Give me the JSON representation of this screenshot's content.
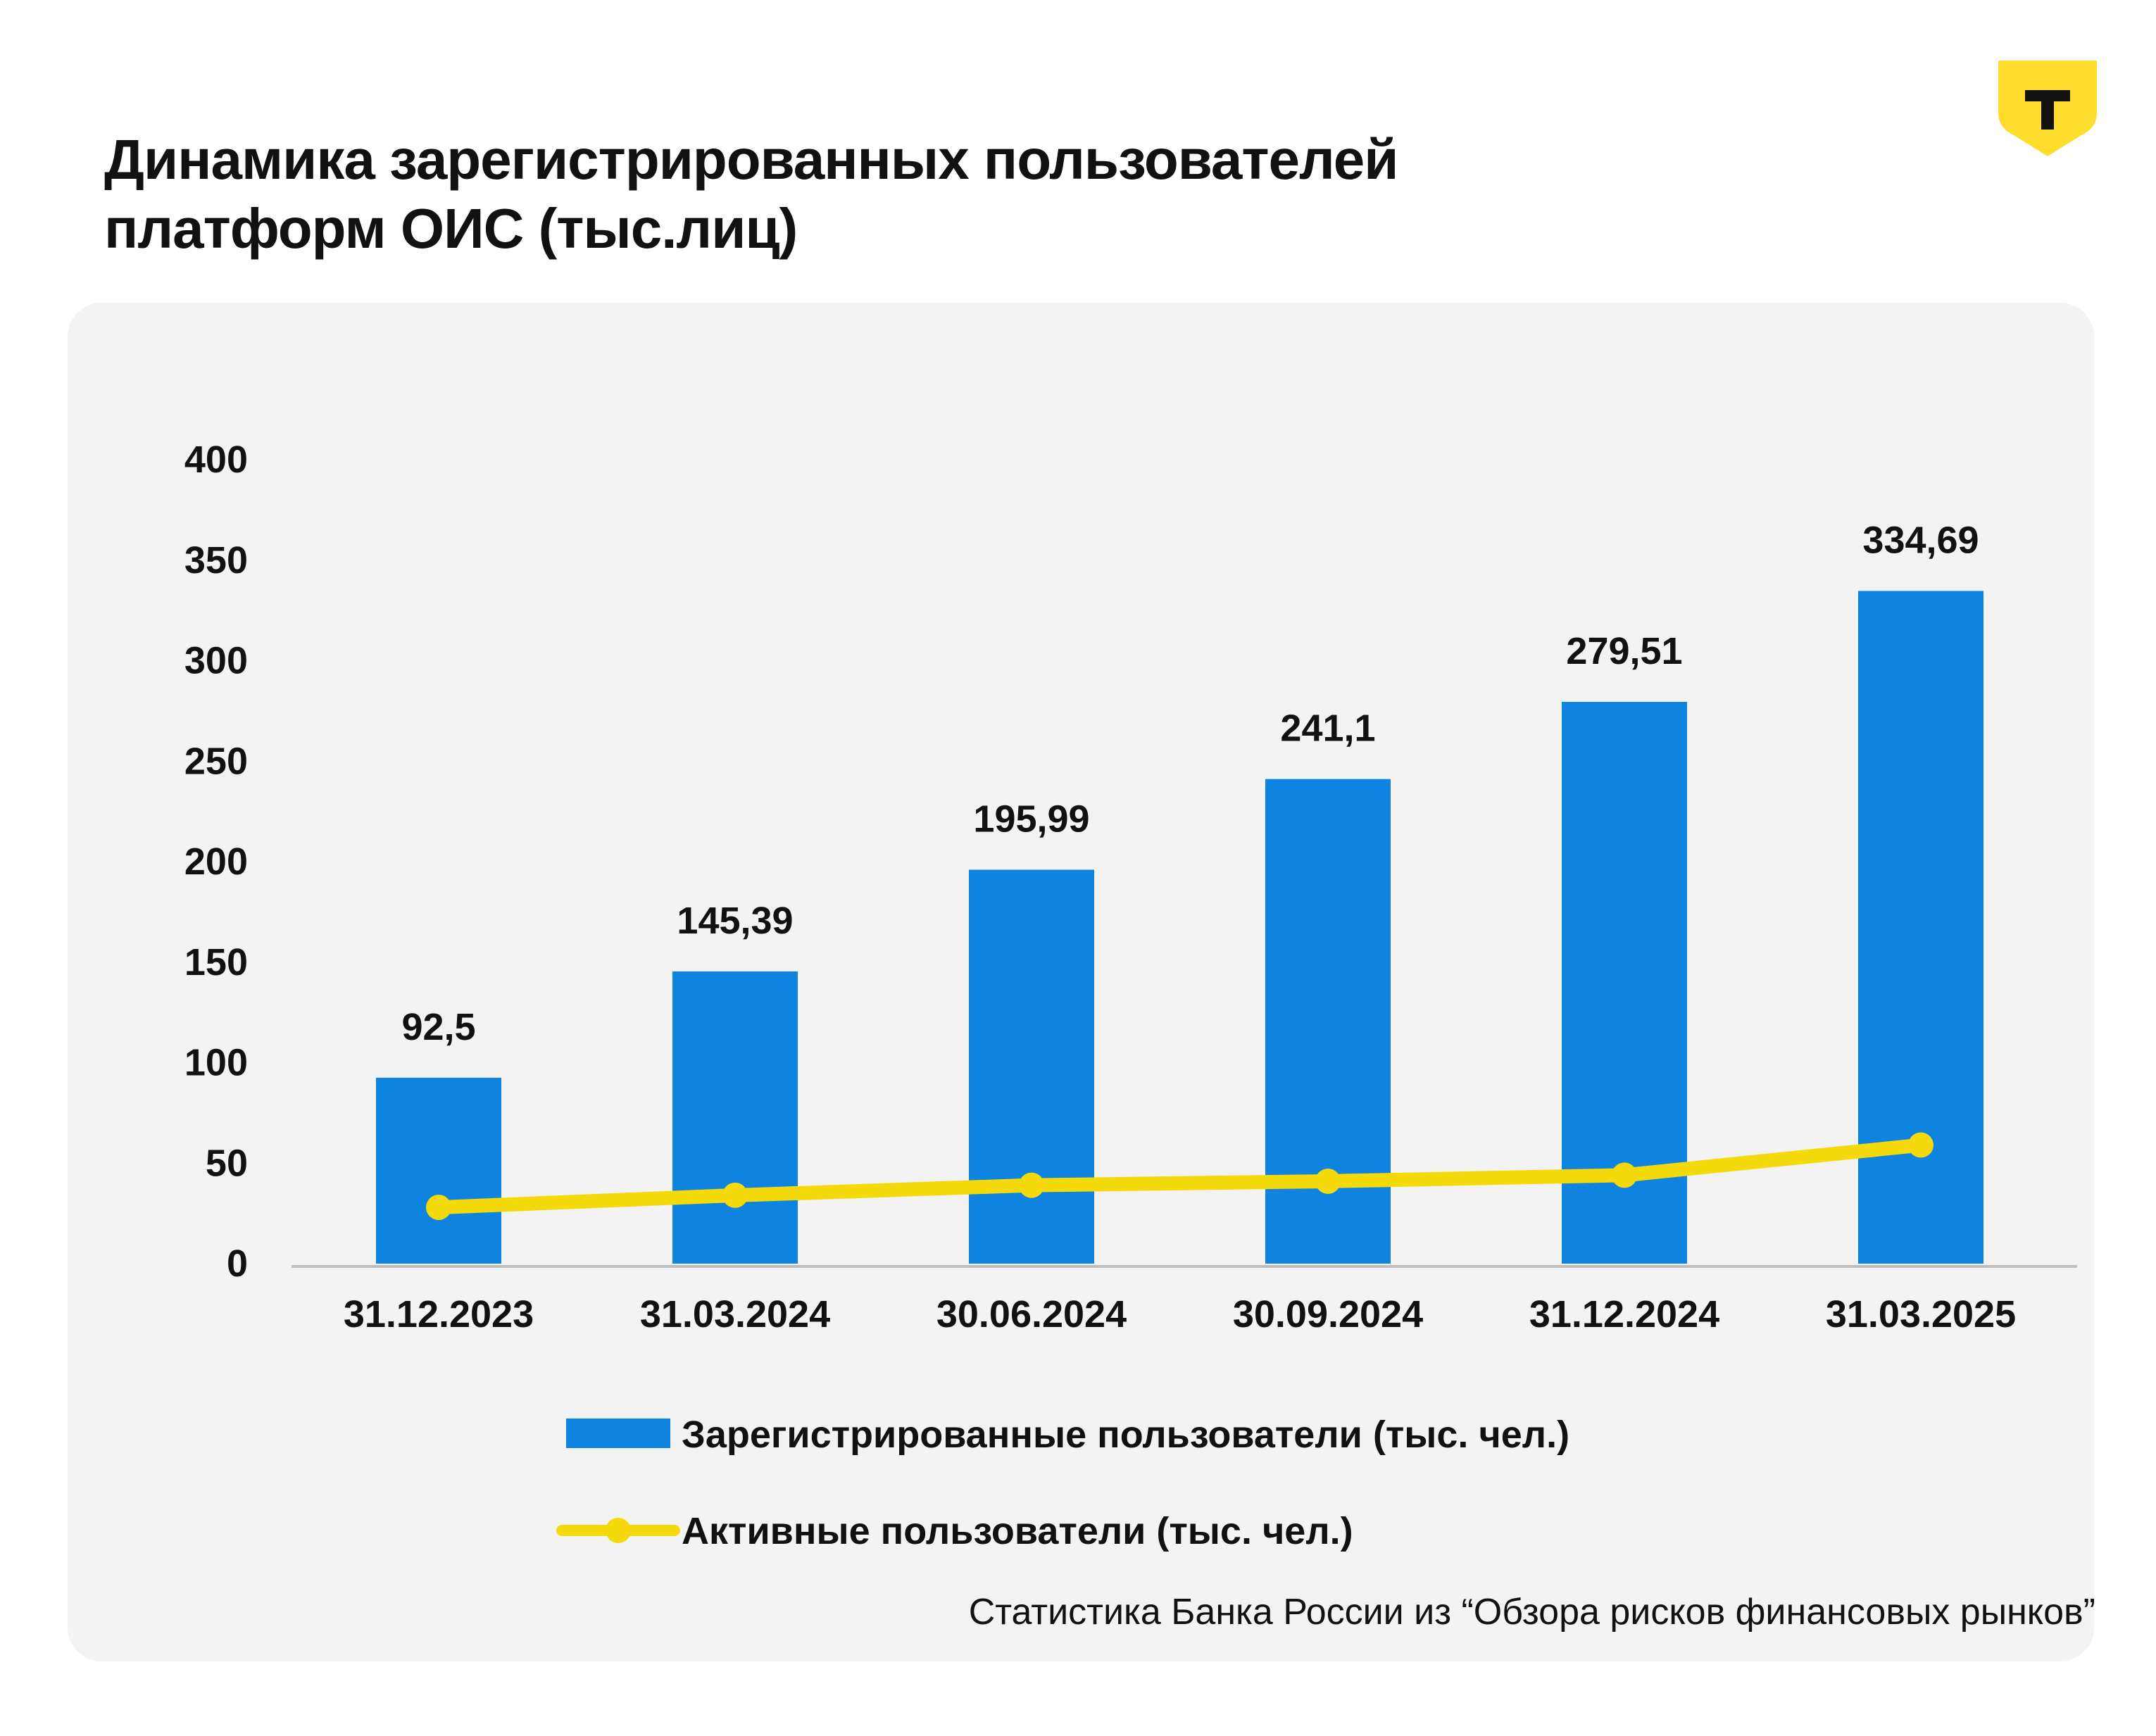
{
  "title_line1": "Динамика зарегистрированных пользователей",
  "title_line2": "платформ ОИС (тыс.лиц)",
  "logo": {
    "letter": "Т",
    "icon": "shield-t-logo",
    "color": "#ffdd2d"
  },
  "source": "Статистика Банка России из “Обзора рисков финансовых рынков”",
  "colors": {
    "bar": "#0e84e0",
    "line": "#f4d90b",
    "panel": "#f3f3f3",
    "axis": "#bdbdbd"
  },
  "chart_data": {
    "type": "bar",
    "title": "Динамика зарегистрированных пользователей платформ ОИС (тыс.лиц)",
    "categories": [
      "31.12.2023",
      "31.03.2024",
      "30.06.2024",
      "30.09.2024",
      "31.12.2024",
      "31.03.2025"
    ],
    "series": [
      {
        "name": "Зарегистрированные пользователи (тыс. чел.)",
        "type": "bar",
        "values": [
          92.5,
          145.39,
          195.99,
          241.1,
          279.51,
          334.69
        ],
        "labels": [
          "92,5",
          "145,39",
          "195,99",
          "241,1",
          "279,51",
          "334,69"
        ]
      },
      {
        "name": "Активные пользователи (тыс. чел.)",
        "type": "line",
        "values": [
          28,
          34,
          39,
          41,
          44,
          59
        ]
      }
    ],
    "ylim": [
      0,
      400
    ],
    "yticks": [
      0,
      50,
      100,
      150,
      200,
      250,
      300,
      350,
      400
    ],
    "grid": false,
    "legend": "bottom"
  }
}
